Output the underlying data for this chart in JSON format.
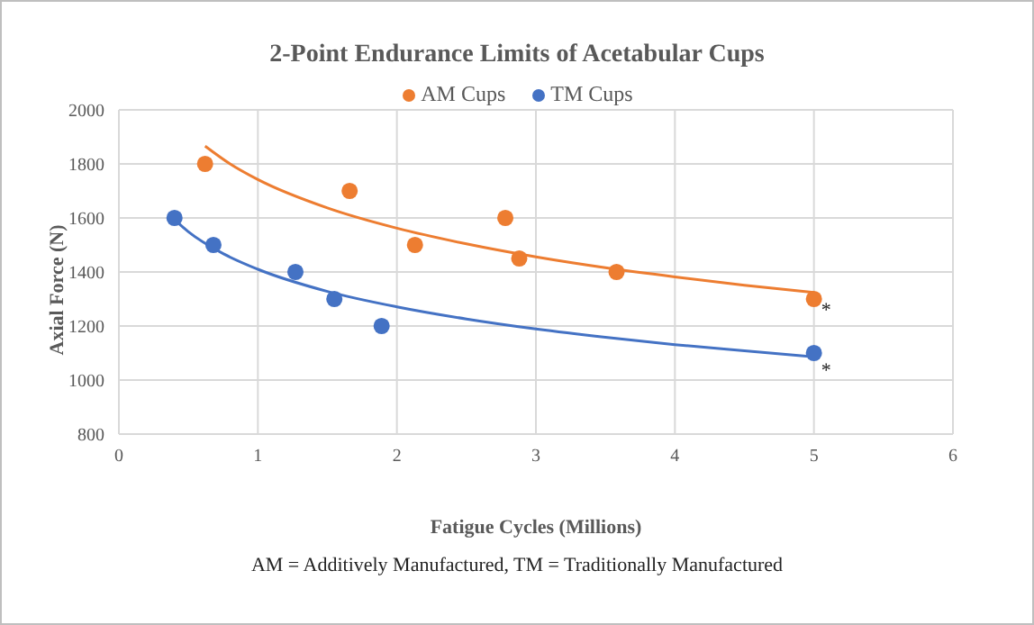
{
  "chart_data": {
    "type": "scatter",
    "title": "2-Point Endurance Limits of Acetabular Cups",
    "xlabel": "Fatigue Cycles (Millions)",
    "ylabel": "Axial Force (N)",
    "series": [
      {
        "name": "AM Cups",
        "color": "#ed7d31",
        "x": [
          0.62,
          1.66,
          2.13,
          2.78,
          2.88,
          3.58,
          5.0
        ],
        "values": [
          1800,
          1700,
          1500,
          1600,
          1450,
          1400,
          1300
        ]
      },
      {
        "name": "TM Cups",
        "color": "#4472c4",
        "x": [
          0.4,
          0.68,
          1.27,
          1.55,
          1.89,
          5.0
        ],
        "values": [
          1600,
          1500,
          1400,
          1300,
          1200,
          1100
        ]
      },
      {
        "type": "line",
        "marker": "none",
        "color": "#ed7d31",
        "x": [
          0.62,
          0.8,
          1,
          1.5,
          2,
          2.5,
          3,
          3.5,
          4,
          4.5,
          5
        ],
        "values": [
          1866,
          1800,
          1742,
          1637,
          1562,
          1504,
          1456,
          1416,
          1382,
          1351,
          1324
        ]
      },
      {
        "type": "line",
        "marker": "none",
        "color": "#4472c4",
        "x": [
          0.4,
          0.5,
          0.75,
          1,
          1.5,
          2,
          2.5,
          3,
          3.5,
          4,
          4.5,
          5
        ],
        "values": [
          1594,
          1549,
          1468,
          1410,
          1328,
          1271,
          1226,
          1189,
          1158,
          1131,
          1108,
          1086
        ]
      }
    ],
    "xlim": [
      0,
      6
    ],
    "xticks": [
      0,
      1,
      2,
      3,
      4,
      5,
      6
    ],
    "ylim": [
      800,
      2000
    ],
    "yticks": [
      800,
      1000,
      1200,
      1400,
      1600,
      1800,
      2000
    ],
    "grid": true,
    "legend": "top",
    "marker": "circle",
    "line_style": "solid",
    "annotations": [
      {
        "text": "*",
        "x": 5.0,
        "y": 1300
      },
      {
        "text": "*",
        "x": 5.0,
        "y": 1100
      },
      "AM = Additively Manufactured, TM = Traditionally Manufactured"
    ]
  }
}
